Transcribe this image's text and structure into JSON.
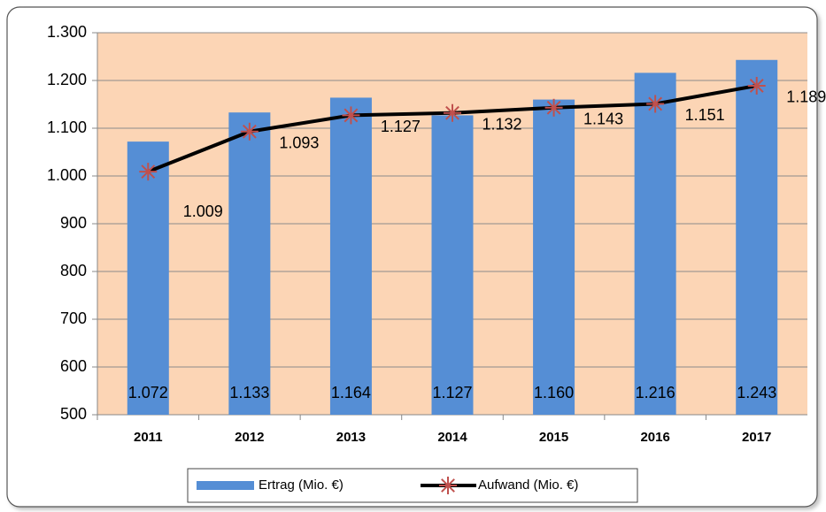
{
  "chart_data": {
    "type": "bar",
    "categories": [
      "2011",
      "2012",
      "2013",
      "2014",
      "2015",
      "2016",
      "2017"
    ],
    "series": [
      {
        "name": "Ertrag (Mio. €)",
        "type": "bar",
        "color": "#558ed5",
        "values": [
          1072,
          1133,
          1164,
          1127,
          1160,
          1216,
          1243
        ],
        "value_labels": [
          "1.072",
          "1.133",
          "1.164",
          "1.127",
          "1.160",
          "1.216",
          "1.243"
        ]
      },
      {
        "name": "Aufwand (Mio. €)",
        "type": "line",
        "color": "#000000",
        "marker_color": "#c0504d",
        "values": [
          1009,
          1093,
          1127,
          1132,
          1143,
          1151,
          1189
        ],
        "value_labels": [
          "1.009",
          "1.093",
          "1.127",
          "1.132",
          "1.143",
          "1.151",
          "1.189"
        ]
      }
    ],
    "ylim": [
      500,
      1300
    ],
    "yticks": [
      500,
      600,
      700,
      800,
      900,
      {
        "value": 1000,
        "label": "1.000"
      },
      {
        "value": 1100,
        "label": "1.100"
      },
      {
        "value": 1200,
        "label": "1.200"
      },
      {
        "value": 1300,
        "label": "1.300"
      }
    ],
    "grid": true,
    "plot_background": "#fcd5b5",
    "legend": "bottom"
  }
}
